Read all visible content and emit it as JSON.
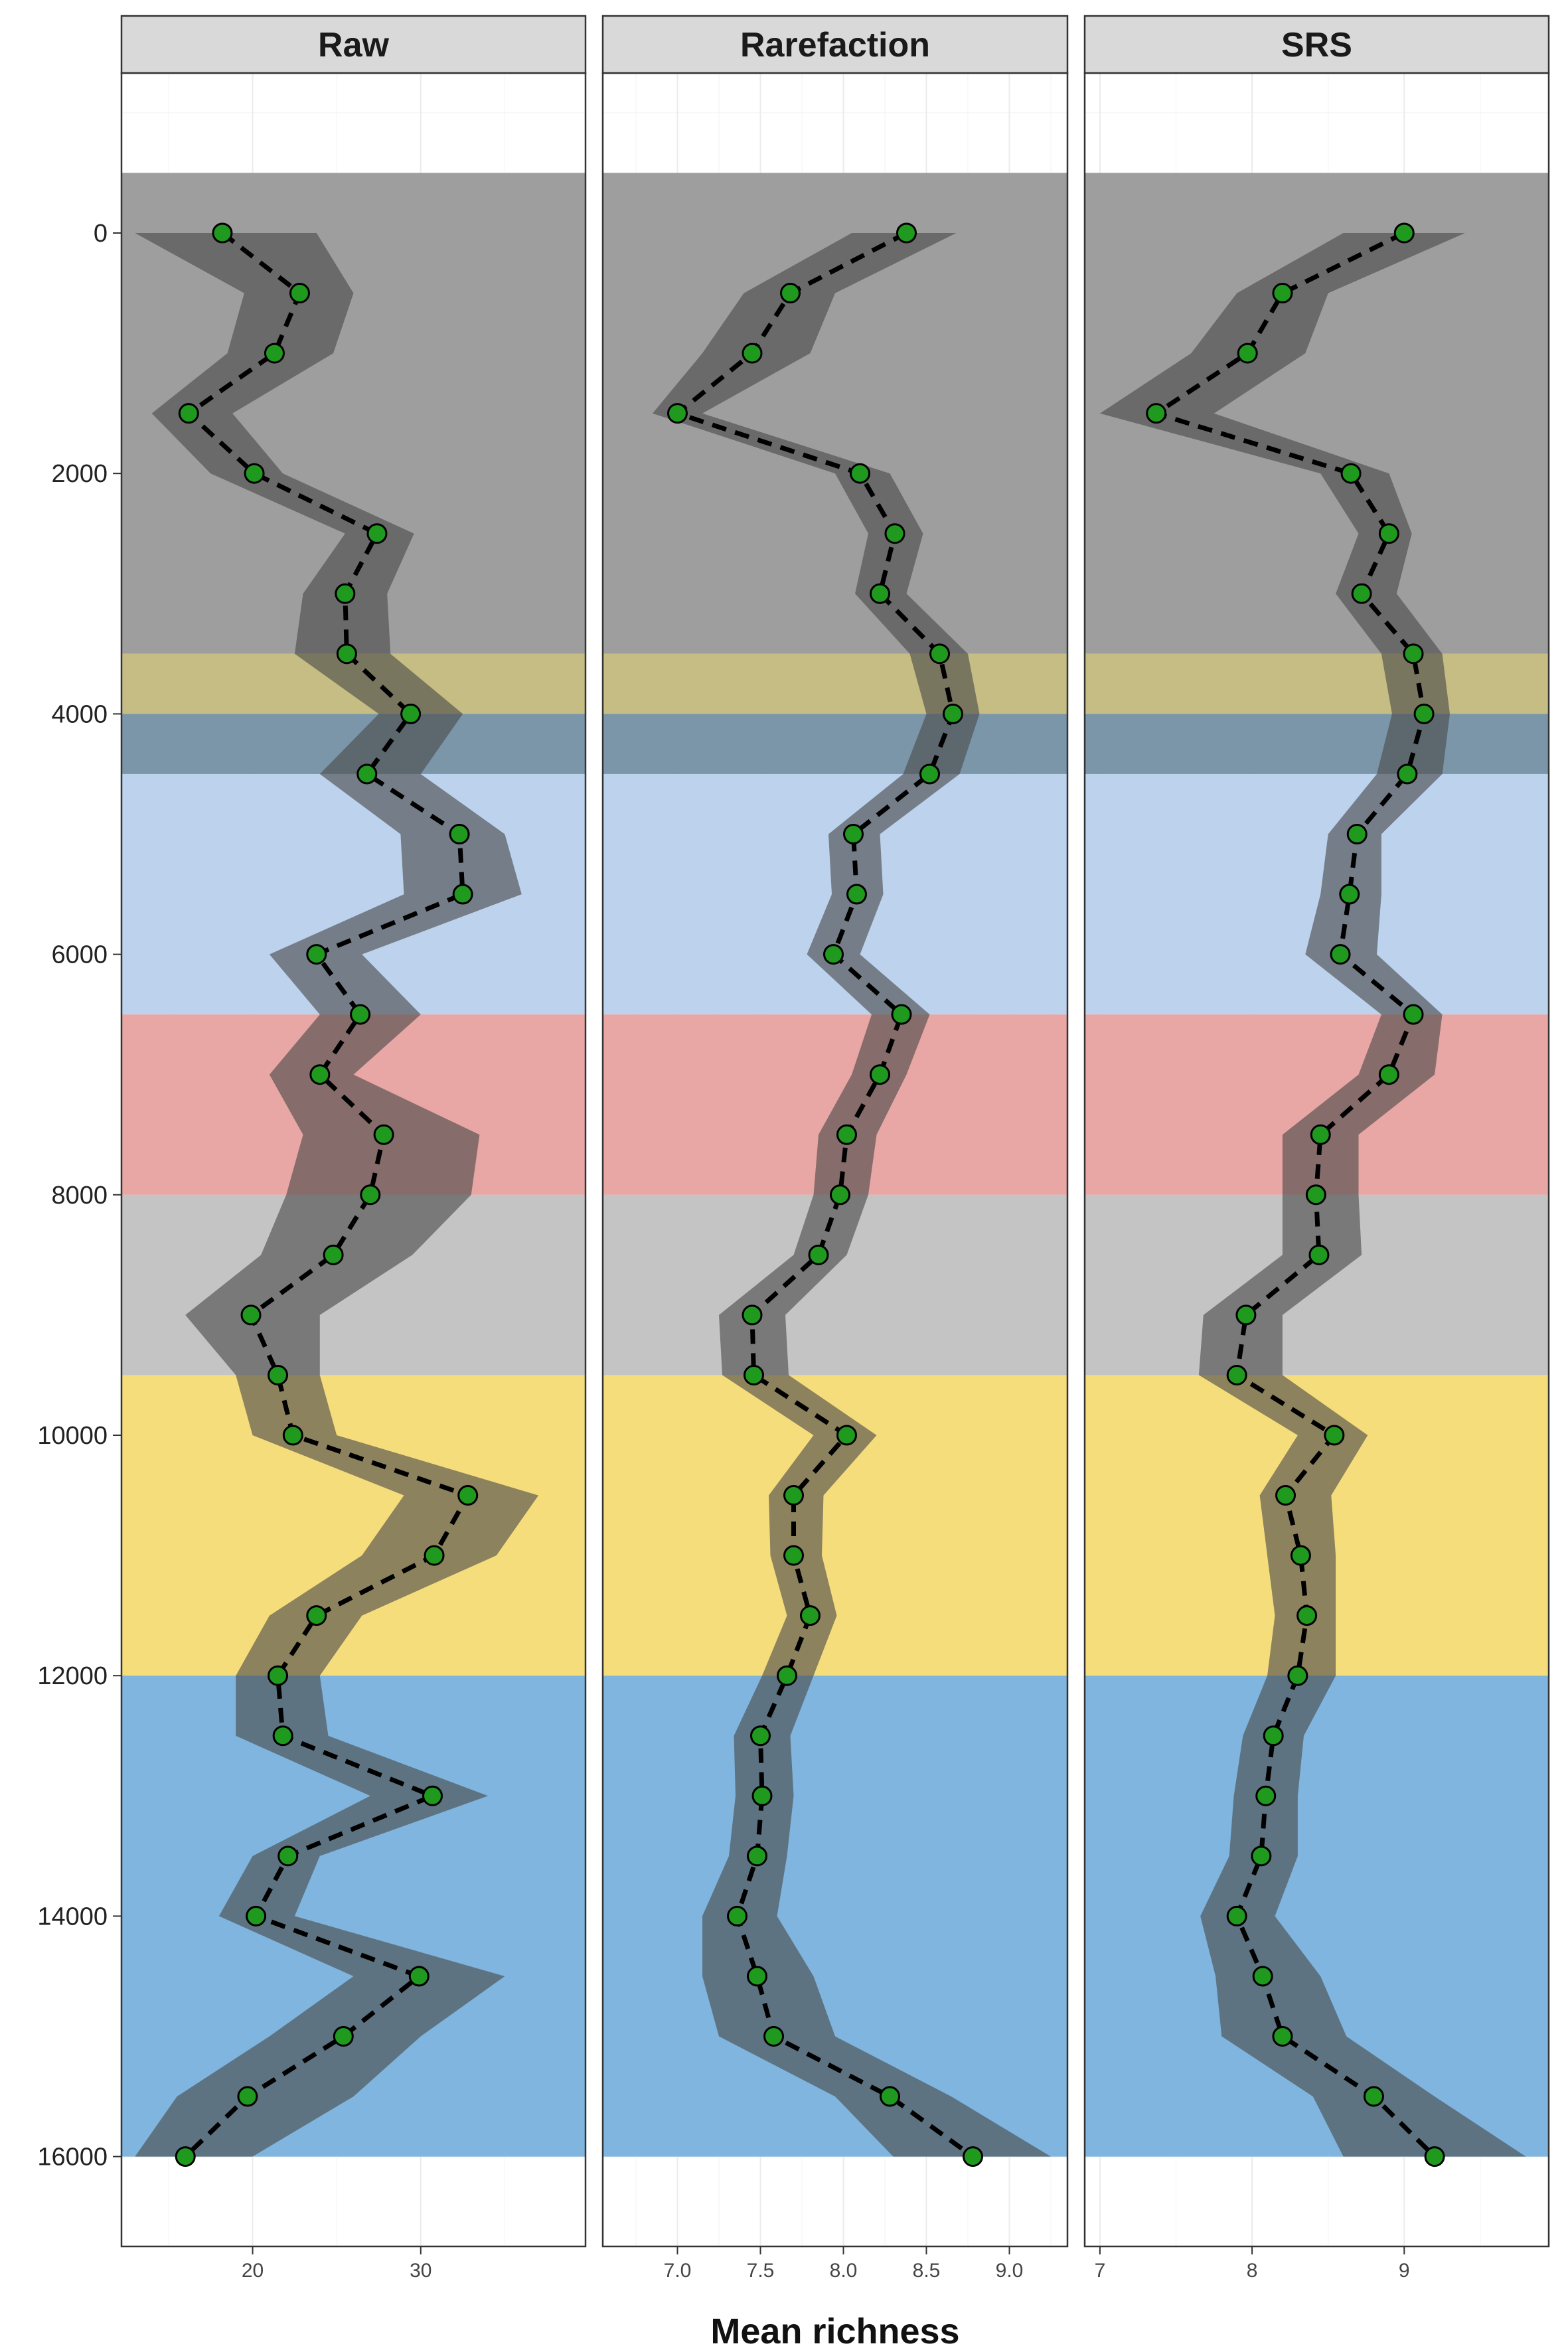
{
  "chart_data": {
    "type": "line",
    "xlabel": "Mean richness",
    "ylabel": "",
    "ylim": [
      16800,
      -1700
    ],
    "y_ticks": [
      0,
      2000,
      4000,
      6000,
      8000,
      10000,
      12000,
      14000,
      16000
    ],
    "y_tick_labels": [
      "0",
      "2000",
      "4000",
      "6000",
      "8000",
      "10000",
      "12000",
      "14000",
      "16000"
    ],
    "background_bands": [
      {
        "y": [
          -500,
          3500
        ],
        "color": "#9e9e9e"
      },
      {
        "y": [
          3500,
          4000
        ],
        "color": "#c6bd84"
      },
      {
        "y": [
          4000,
          4500
        ],
        "color": "#7b95a9"
      },
      {
        "y": [
          4500,
          6500
        ],
        "color": "#bcd2ed"
      },
      {
        "y": [
          6500,
          8000
        ],
        "color": "#e8a7a4"
      },
      {
        "y": [
          8000,
          9500
        ],
        "color": "#c4c4c4"
      },
      {
        "y": [
          9500,
          12000
        ],
        "color": "#f6dd7c"
      },
      {
        "y": [
          12000,
          16000
        ],
        "color": "#7fb5de"
      }
    ],
    "ribbon_color": "#4a4a4a",
    "point_color": "#1f9a1f",
    "y": [
      0,
      500,
      1000,
      1500,
      2000,
      2500,
      3000,
      3500,
      4000,
      4500,
      5000,
      5500,
      6000,
      6500,
      7000,
      7500,
      8000,
      8500,
      9000,
      9500,
      10000,
      10500,
      11000,
      11500,
      12000,
      12500,
      13000,
      13500,
      14000,
      14500,
      15000,
      15500,
      16000
    ],
    "panels": [
      {
        "title": "Raw",
        "xlim": [
          12.2,
          39.8
        ],
        "x_ticks": [
          20,
          30
        ],
        "x_tick_labels": [
          "20",
          "30"
        ],
        "values": [
          18.2,
          22.8,
          21.3,
          16.2,
          20.1,
          27.4,
          25.5,
          25.6,
          29.4,
          26.8,
          32.3,
          32.5,
          23.8,
          26.4,
          24.0,
          27.8,
          27.0,
          24.8,
          19.9,
          21.5,
          22.4,
          32.8,
          30.8,
          23.8,
          21.5,
          21.8,
          30.7,
          22.1,
          20.2,
          29.9,
          25.4,
          19.7,
          16.0
        ],
        "lower": [
          13.0,
          19.5,
          18.5,
          14.0,
          17.5,
          25.5,
          23.0,
          22.5,
          27.5,
          24.0,
          28.8,
          29.0,
          21.0,
          24.0,
          21.0,
          23.0,
          22.0,
          20.5,
          16.0,
          19.0,
          20.0,
          29.0,
          26.5,
          21.0,
          19.0,
          19.0,
          27.0,
          20.0,
          18.0,
          26.0,
          21.0,
          15.5,
          13.0
        ],
        "upper": [
          23.8,
          26.0,
          24.8,
          18.8,
          21.8,
          29.6,
          28.0,
          28.2,
          32.5,
          30.0,
          35.0,
          36.0,
          26.5,
          30.0,
          26.0,
          33.5,
          33.0,
          29.5,
          24.0,
          24.0,
          25.0,
          37.0,
          34.5,
          26.5,
          24.0,
          24.5,
          34.0,
          24.0,
          22.5,
          35.0,
          30.0,
          26.0,
          20.0
        ]
      },
      {
        "title": "Rarefaction",
        "xlim": [
          6.55,
          9.35
        ],
        "x_ticks": [
          7.0,
          7.5,
          8.0,
          8.5,
          9.0
        ],
        "x_tick_labels": [
          "7.0",
          "7.5",
          "8.0",
          "8.5",
          "9.0"
        ],
        "values": [
          8.38,
          7.68,
          7.45,
          7.0,
          8.1,
          8.31,
          8.22,
          8.58,
          8.66,
          8.52,
          8.06,
          8.08,
          7.94,
          8.35,
          8.22,
          8.02,
          7.98,
          7.85,
          7.45,
          7.46,
          8.02,
          7.7,
          7.7,
          7.8,
          7.66,
          7.5,
          7.51,
          7.48,
          7.36,
          7.48,
          7.58,
          8.28,
          8.78
        ],
        "lower": [
          8.05,
          7.4,
          7.15,
          6.85,
          7.95,
          8.15,
          8.07,
          8.4,
          8.5,
          8.36,
          7.91,
          7.93,
          7.78,
          8.17,
          8.05,
          7.85,
          7.82,
          7.7,
          7.25,
          7.27,
          7.82,
          7.55,
          7.56,
          7.66,
          7.51,
          7.34,
          7.35,
          7.31,
          7.15,
          7.15,
          7.25,
          7.95,
          8.3
        ],
        "upper": [
          8.68,
          7.95,
          7.8,
          7.15,
          8.28,
          8.48,
          8.38,
          8.75,
          8.82,
          8.7,
          8.22,
          8.24,
          8.1,
          8.52,
          8.38,
          8.2,
          8.15,
          8.02,
          7.65,
          7.67,
          8.2,
          7.88,
          7.87,
          7.96,
          7.82,
          7.68,
          7.7,
          7.66,
          7.6,
          7.82,
          7.95,
          8.65,
          9.25
        ]
      },
      {
        "title": "SRS",
        "xlim": [
          6.9,
          9.95
        ],
        "x_ticks": [
          7,
          8,
          9
        ],
        "x_tick_labels": [
          "7",
          "8",
          "9"
        ],
        "values": [
          9.0,
          8.2,
          7.97,
          7.37,
          8.65,
          8.9,
          8.72,
          9.06,
          9.13,
          9.02,
          8.69,
          8.64,
          8.58,
          9.06,
          8.9,
          8.45,
          8.42,
          8.44,
          7.96,
          7.9,
          8.54,
          8.22,
          8.32,
          8.36,
          8.3,
          8.14,
          8.09,
          8.06,
          7.9,
          8.07,
          8.2,
          8.8,
          9.2
        ],
        "lower": [
          8.6,
          7.9,
          7.6,
          7.0,
          8.45,
          8.7,
          8.55,
          8.85,
          8.92,
          8.82,
          8.5,
          8.45,
          8.35,
          8.85,
          8.7,
          8.2,
          8.2,
          8.2,
          7.68,
          7.65,
          8.3,
          8.05,
          8.1,
          8.15,
          8.1,
          7.94,
          7.88,
          7.85,
          7.66,
          7.76,
          7.8,
          8.4,
          8.6
        ],
        "upper": [
          9.4,
          8.5,
          8.35,
          7.75,
          8.9,
          9.05,
          8.95,
          9.25,
          9.3,
          9.25,
          8.85,
          8.85,
          8.82,
          9.25,
          9.2,
          8.7,
          8.7,
          8.72,
          8.2,
          8.2,
          8.76,
          8.52,
          8.55,
          8.55,
          8.55,
          8.34,
          8.3,
          8.3,
          8.15,
          8.45,
          8.62,
          9.2,
          9.8
        ]
      }
    ]
  }
}
